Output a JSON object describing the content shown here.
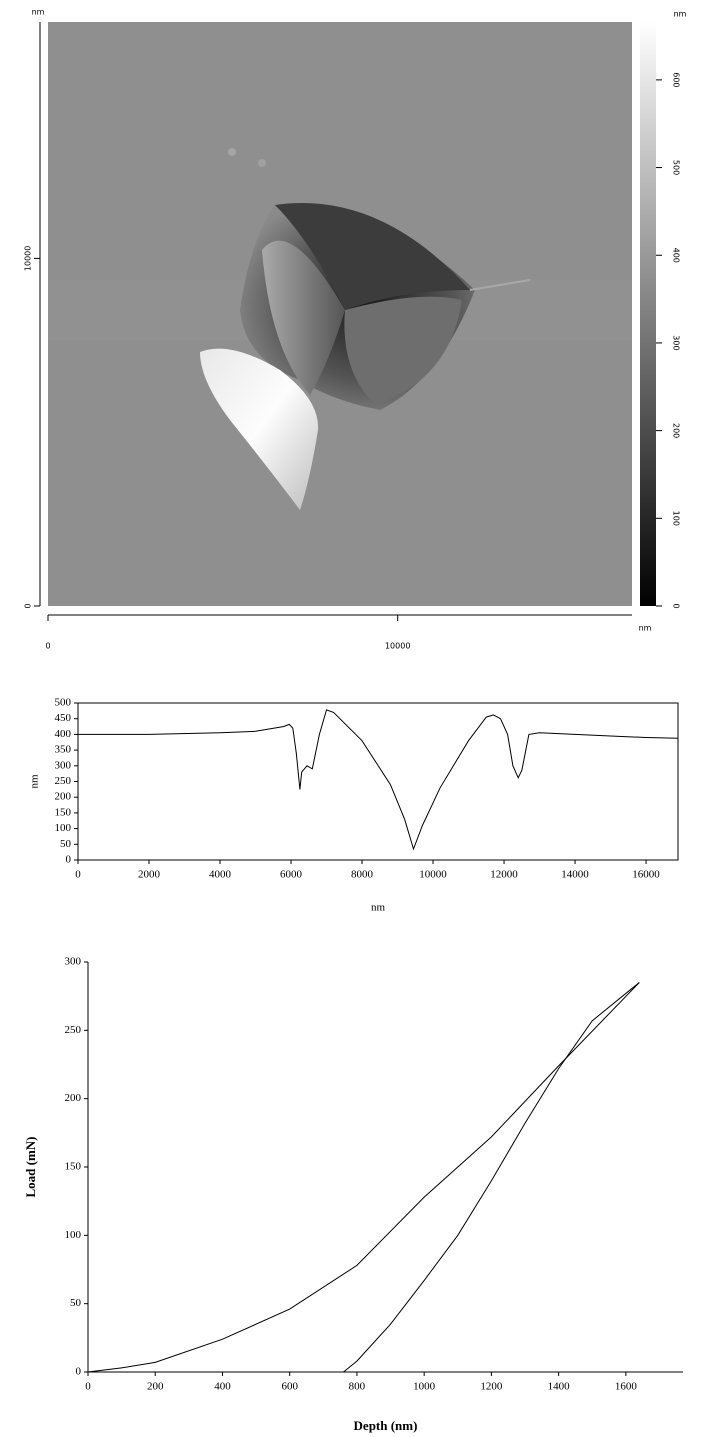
{
  "chart_data": [
    {
      "type": "image",
      "xlabel": "nm",
      "ylabel": "nm",
      "clabel": "nm",
      "xlim": [
        0,
        16700
      ],
      "ylim": [
        0,
        16800
      ],
      "xticks": [
        0,
        10000
      ],
      "yticks": [
        0,
        10000
      ],
      "clim": [
        0,
        666
      ],
      "cticks": [
        0,
        100,
        200,
        300,
        400,
        500,
        600
      ]
    },
    {
      "type": "line",
      "xlabel": "nm",
      "ylabel": "nm",
      "color": "#000000",
      "x": [
        0,
        2000,
        4000,
        5000,
        5800,
        5950,
        6050,
        6150,
        6250,
        6300,
        6450,
        6600,
        6800,
        7000,
        7200,
        8000,
        8800,
        9200,
        9450,
        9700,
        10200,
        11000,
        11500,
        11700,
        11900,
        12100,
        12250,
        12400,
        12500,
        12700,
        13000,
        14000,
        15000,
        16000,
        16900
      ],
      "values": [
        400,
        400,
        405,
        410,
        425,
        432,
        420,
        340,
        225,
        280,
        300,
        290,
        400,
        478,
        470,
        380,
        240,
        130,
        35,
        110,
        230,
        380,
        455,
        462,
        450,
        400,
        300,
        262,
        285,
        400,
        405,
        400,
        395,
        390,
        388
      ],
      "xlim": [
        0,
        16900
      ],
      "ylim": [
        0,
        500
      ],
      "xticks": [
        0,
        2000,
        4000,
        6000,
        8000,
        10000,
        12000,
        14000,
        16000
      ],
      "yticks": [
        0,
        50,
        100,
        150,
        200,
        250,
        300,
        350,
        400,
        450,
        500
      ]
    },
    {
      "type": "line",
      "xlabel": "Depth (nm)",
      "ylabel": "Load (mN)",
      "series": [
        {
          "color": "#000000",
          "x": [
            0,
            100,
            200,
            400,
            600,
            800,
            1000,
            1200,
            1400,
            1640
          ],
          "values": [
            0,
            3,
            7,
            24,
            46,
            78,
            128,
            172,
            224,
            285
          ]
        },
        {
          "color": "#000000",
          "x": [
            760,
            800,
            900,
            1000,
            1100,
            1200,
            1300,
            1400,
            1500,
            1640
          ],
          "values": [
            0,
            8,
            35,
            67,
            100,
            140,
            182,
            222,
            257,
            285
          ]
        }
      ],
      "xlim": [
        0,
        1770
      ],
      "ylim": [
        0,
        300
      ],
      "xticks": [
        0,
        200,
        400,
        600,
        800,
        1000,
        1200,
        1400,
        1600
      ],
      "yticks": [
        0,
        50,
        100,
        150,
        200,
        250,
        300
      ]
    }
  ]
}
